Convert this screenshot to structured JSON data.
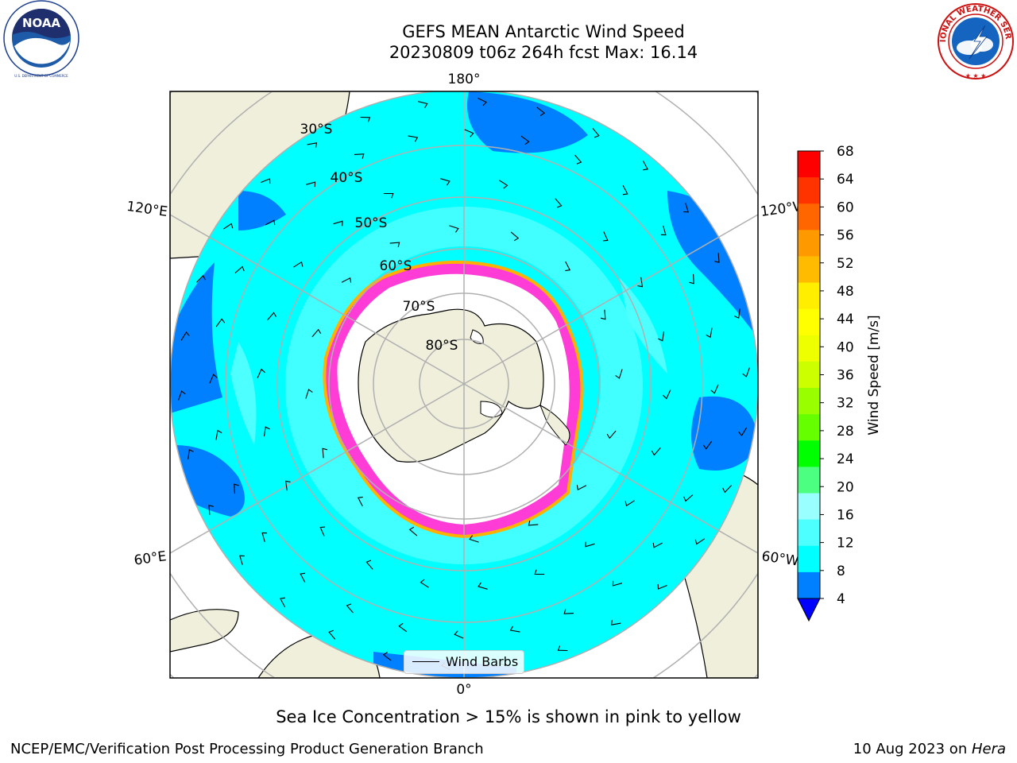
{
  "header": {
    "title_line1": "GEFS MEAN Antarctic Wind Speed",
    "title_line2": "20230809 t06z 264h fcst   Max: 16.14"
  },
  "logos": {
    "left": {
      "icon": "noaa-logo-icon",
      "text": "NOAA",
      "ring_text": "NATIONAL OCEANIC AND ATMOSPHERIC ADMINISTRATION · U.S. DEPARTMENT OF COMMERCE"
    },
    "right": {
      "icon": "nws-logo-icon",
      "ring_text": "NATIONAL WEATHER SERVICE"
    }
  },
  "map": {
    "projection": "south-polar-stereographic",
    "longitude_labels": [
      "180°",
      "120°E",
      "120°W",
      "60°E",
      "60°W",
      "0°"
    ],
    "latitude_labels": [
      "30°S",
      "40°S",
      "50°S",
      "60°S",
      "70°S",
      "80°S"
    ],
    "colors": {
      "ocean_base": "#00ffff",
      "wind_4_8": "#0080ff",
      "wind_12_16": "#4dffff",
      "land": "#efefdc",
      "ice_shelf": "#ffffff",
      "sea_ice_edge": "#ff3dd6",
      "grid": "#b0b0b0"
    },
    "legend": {
      "label": "Wind Barbs"
    }
  },
  "colorbar": {
    "label": "Wind Speed [m/s]",
    "ticks": [
      "68",
      "64",
      "60",
      "56",
      "52",
      "48",
      "44",
      "40",
      "36",
      "32",
      "28",
      "24",
      "20",
      "16",
      "12",
      "8",
      "4"
    ],
    "colors": [
      "#ff0000",
      "#ff3300",
      "#ff6600",
      "#ff9900",
      "#ffbb00",
      "#ffee00",
      "#ffff00",
      "#eeff00",
      "#ccff00",
      "#99ff00",
      "#66ff00",
      "#00ff00",
      "#4dff80",
      "#99ffff",
      "#4dffff",
      "#00ffff",
      "#0080ff"
    ],
    "under_color": "#0000ff"
  },
  "caption": "Sea Ice Concentration > 15% is shown in pink to yellow",
  "footer": {
    "left": "NCEP/EMC/Verification Post Processing Product Generation Branch",
    "right_date": "10 Aug 2023 on ",
    "right_host": "Hera"
  }
}
